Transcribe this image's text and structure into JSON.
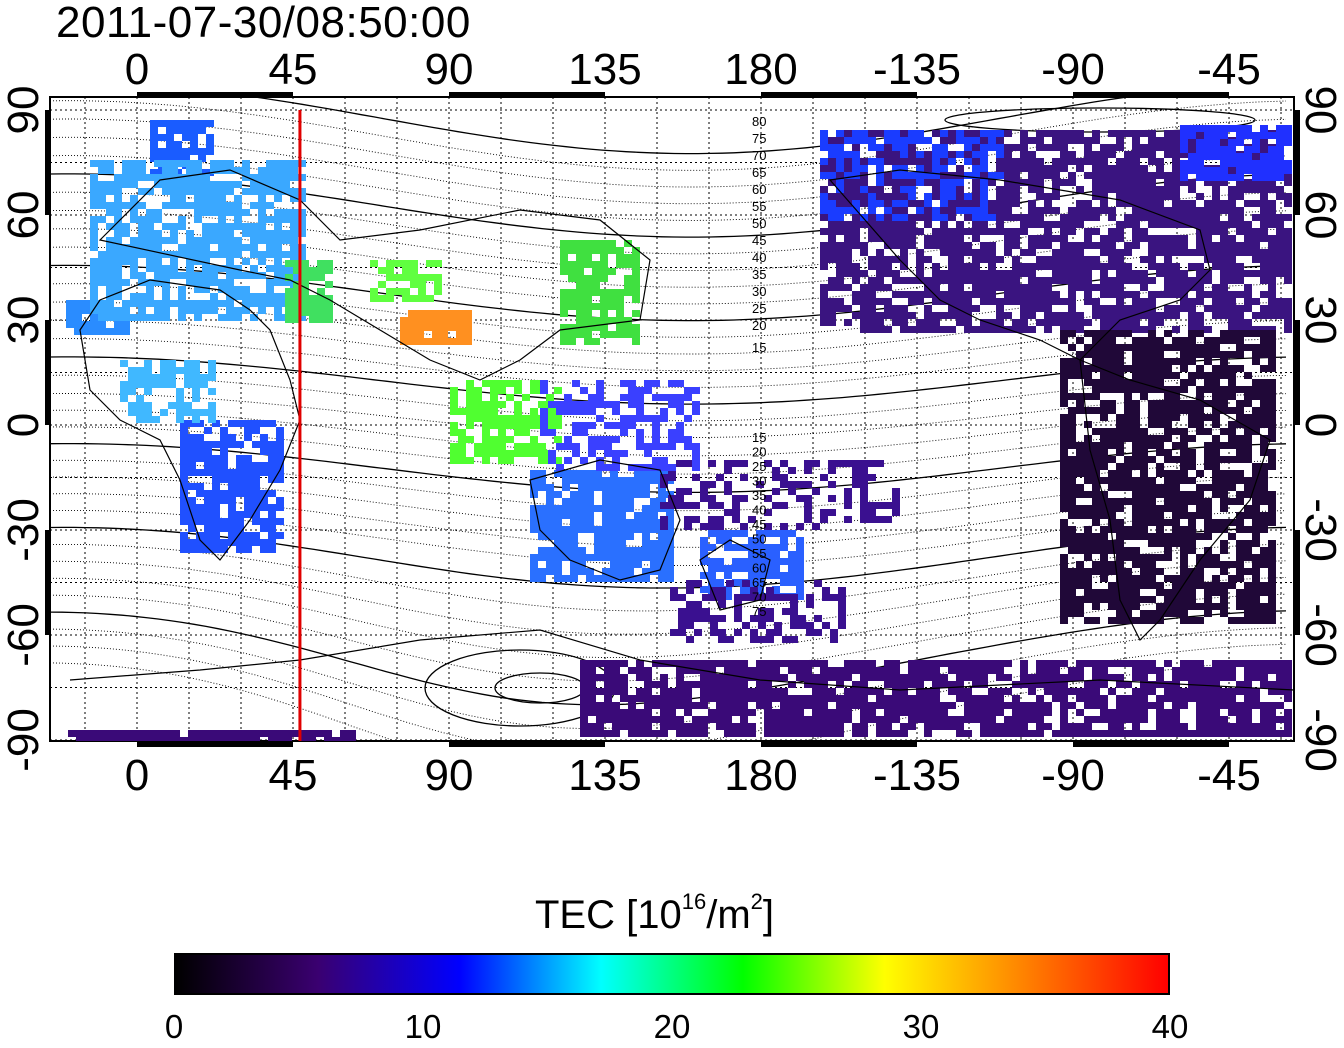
{
  "title": "2011-07-30/08:50:00",
  "map": {
    "top_lon_labels": [
      "0",
      "45",
      "90",
      "135",
      "180",
      "-135",
      "-90",
      "-45"
    ],
    "bottom_lon_labels": [
      "0",
      "45",
      "90",
      "135",
      "180",
      "-135",
      "-90",
      "-45"
    ],
    "lat_labels": [
      "90",
      "60",
      "30",
      "0",
      "-30",
      "-60",
      "-90"
    ],
    "grid": true,
    "marker_line": {
      "lon": 47,
      "color": "#e00000"
    },
    "contour_labels": [
      "80",
      "75",
      "70",
      "65",
      "60",
      "55",
      "50",
      "45",
      "40",
      "35",
      "30",
      "25",
      "20",
      "15",
      "15",
      "20",
      "25",
      "30",
      "35",
      "40",
      "45",
      "50",
      "55",
      "60",
      "65",
      "70",
      "75"
    ]
  },
  "colorbar": {
    "title_prefix": "TEC  [10",
    "title_sup1": "16",
    "title_mid": "/m",
    "title_sup2": "2",
    "title_suffix": "]",
    "min": 0,
    "max": 40,
    "tick_labels": [
      "0",
      "10",
      "20",
      "30",
      "40"
    ],
    "colors": [
      "#000000",
      "#3a0070",
      "#0000ff",
      "#00ffff",
      "#00ff00",
      "#ffff00",
      "#ff8000",
      "#ff0000"
    ]
  }
}
